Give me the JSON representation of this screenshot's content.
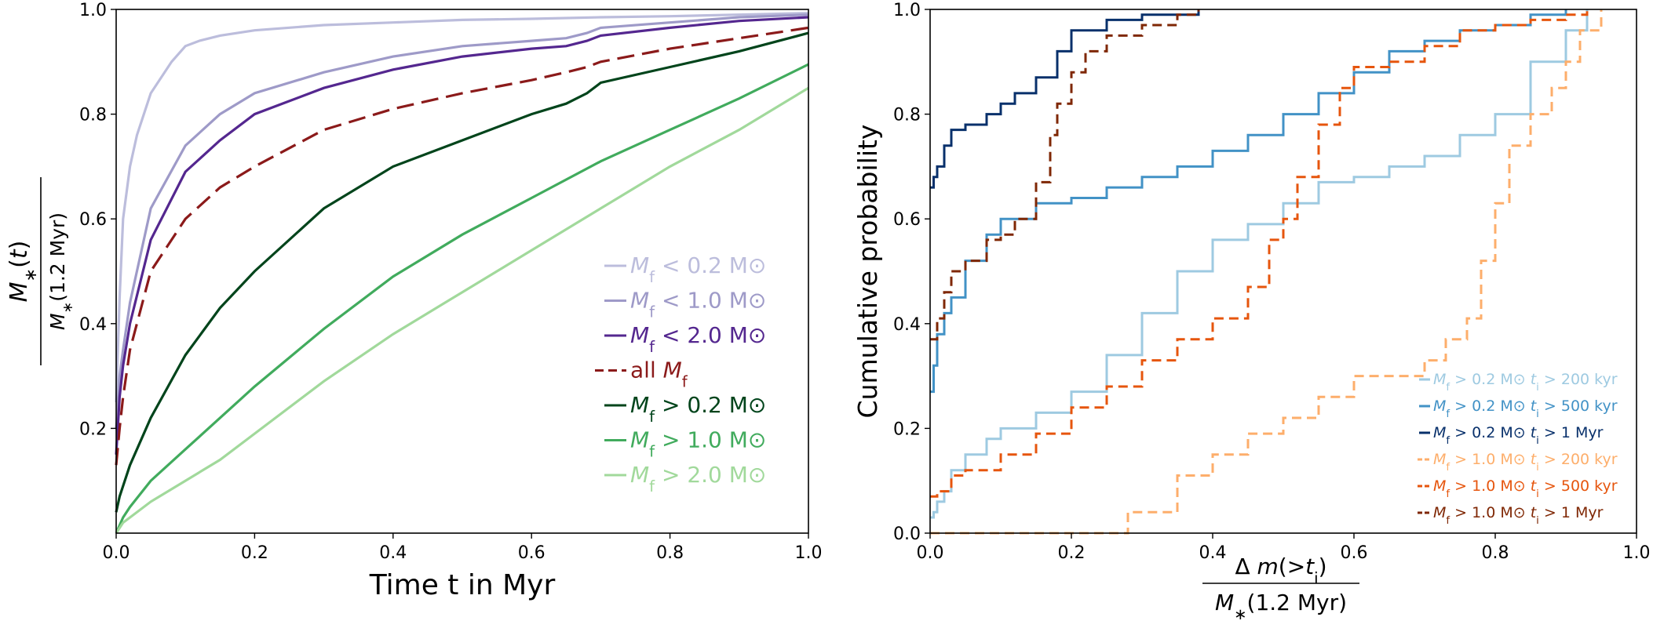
{
  "chart_data": [
    {
      "type": "line",
      "xlabel": "Time t in Myr",
      "ylabel_numerator": "M*(t)",
      "ylabel_denominator": "M*(1.2 Myr)",
      "xlim": [
        0.0,
        1.0
      ],
      "ylim": [
        0.0,
        1.0
      ],
      "xticks": [
        "0.0",
        "0.2",
        "0.4",
        "0.6",
        "0.8",
        "1.0"
      ],
      "yticks": [
        "0.2",
        "0.4",
        "0.6",
        "0.8",
        "1.0"
      ],
      "legend_position": "lower-right",
      "series": [
        {
          "name": "Mf < 0.2 M⊙",
          "color": "#bcbddc",
          "dash": "solid",
          "x": [
            0,
            0.005,
            0.01,
            0.02,
            0.03,
            0.05,
            0.08,
            0.1,
            0.12,
            0.15,
            0.2,
            0.3,
            0.4,
            0.5,
            0.6,
            0.7,
            0.8,
            0.9,
            1.0
          ],
          "y": [
            0.25,
            0.45,
            0.6,
            0.7,
            0.76,
            0.84,
            0.9,
            0.93,
            0.94,
            0.95,
            0.96,
            0.97,
            0.975,
            0.98,
            0.982,
            0.985,
            0.987,
            0.99,
            0.993
          ]
        },
        {
          "name": "Mf < 1.0 M⊙",
          "color": "#9e9ac8",
          "dash": "solid",
          "x": [
            0,
            0.005,
            0.01,
            0.02,
            0.05,
            0.1,
            0.15,
            0.2,
            0.3,
            0.4,
            0.5,
            0.6,
            0.65,
            0.68,
            0.7,
            0.8,
            0.9,
            1.0
          ],
          "y": [
            0.2,
            0.3,
            0.35,
            0.44,
            0.62,
            0.74,
            0.8,
            0.84,
            0.88,
            0.91,
            0.93,
            0.94,
            0.945,
            0.955,
            0.965,
            0.975,
            0.985,
            0.99
          ]
        },
        {
          "name": "Mf < 2.0 M⊙",
          "color": "#54278f",
          "dash": "solid",
          "x": [
            0,
            0.005,
            0.01,
            0.02,
            0.05,
            0.1,
            0.15,
            0.2,
            0.3,
            0.4,
            0.5,
            0.6,
            0.65,
            0.68,
            0.7,
            0.8,
            0.9,
            1.0
          ],
          "y": [
            0.15,
            0.26,
            0.32,
            0.4,
            0.56,
            0.69,
            0.75,
            0.8,
            0.85,
            0.885,
            0.91,
            0.925,
            0.93,
            0.94,
            0.95,
            0.965,
            0.978,
            0.985
          ]
        },
        {
          "name": "all Mf",
          "color": "#8b1a1a",
          "dash": "dashed",
          "x": [
            0,
            0.005,
            0.01,
            0.02,
            0.05,
            0.1,
            0.15,
            0.2,
            0.3,
            0.4,
            0.5,
            0.6,
            0.65,
            0.68,
            0.7,
            0.8,
            0.9,
            1.0
          ],
          "y": [
            0.13,
            0.2,
            0.26,
            0.35,
            0.5,
            0.6,
            0.66,
            0.7,
            0.77,
            0.81,
            0.84,
            0.865,
            0.88,
            0.89,
            0.9,
            0.925,
            0.945,
            0.965
          ]
        },
        {
          "name": "Mf > 0.2 M⊙",
          "color": "#00441b",
          "dash": "solid",
          "x": [
            0,
            0.005,
            0.01,
            0.02,
            0.05,
            0.1,
            0.15,
            0.2,
            0.3,
            0.4,
            0.5,
            0.6,
            0.65,
            0.68,
            0.7,
            0.8,
            0.9,
            1.0
          ],
          "y": [
            0.04,
            0.07,
            0.09,
            0.13,
            0.22,
            0.34,
            0.43,
            0.5,
            0.62,
            0.7,
            0.75,
            0.8,
            0.82,
            0.84,
            0.86,
            0.89,
            0.92,
            0.955
          ]
        },
        {
          "name": "Mf > 1.0 M⊙",
          "color": "#41ab5d",
          "dash": "solid",
          "x": [
            0,
            0.01,
            0.02,
            0.05,
            0.1,
            0.2,
            0.3,
            0.4,
            0.5,
            0.6,
            0.7,
            0.8,
            0.9,
            1.0
          ],
          "y": [
            0.0,
            0.03,
            0.05,
            0.1,
            0.16,
            0.28,
            0.39,
            0.49,
            0.57,
            0.64,
            0.71,
            0.77,
            0.83,
            0.895
          ]
        },
        {
          "name": "Mf > 2.0 M⊙",
          "color": "#a1d99b",
          "dash": "solid",
          "x": [
            0,
            0.01,
            0.02,
            0.05,
            0.1,
            0.15,
            0.2,
            0.3,
            0.4,
            0.5,
            0.6,
            0.7,
            0.8,
            0.9,
            1.0
          ],
          "y": [
            0.0,
            0.02,
            0.03,
            0.06,
            0.1,
            0.14,
            0.19,
            0.29,
            0.38,
            0.46,
            0.54,
            0.62,
            0.7,
            0.77,
            0.85
          ]
        }
      ]
    },
    {
      "type": "line",
      "xlabel_numerator": "Δ m(>ti)",
      "xlabel_denominator": "M*(1.2 Myr)",
      "ylabel": "Cumulative probability",
      "xlim": [
        0.0,
        1.0
      ],
      "ylim": [
        0.0,
        1.0
      ],
      "xticks": [
        "0.0",
        "0.2",
        "0.4",
        "0.6",
        "0.8",
        "1.0"
      ],
      "yticks": [
        "0.0",
        "0.2",
        "0.4",
        "0.6",
        "0.8",
        "1.0"
      ],
      "legend_position": "lower-right",
      "series": [
        {
          "name": "Mf > 0.2 M⊙ ti > 200 kyr",
          "color": "#9ecae1",
          "dash": "solid",
          "x": [
            0,
            0.005,
            0.01,
            0.02,
            0.03,
            0.05,
            0.08,
            0.1,
            0.15,
            0.2,
            0.25,
            0.3,
            0.35,
            0.4,
            0.45,
            0.5,
            0.55,
            0.6,
            0.65,
            0.7,
            0.75,
            0.8,
            0.85,
            0.9,
            0.93
          ],
          "y": [
            0.03,
            0.04,
            0.06,
            0.08,
            0.12,
            0.15,
            0.18,
            0.2,
            0.23,
            0.27,
            0.34,
            0.42,
            0.5,
            0.56,
            0.59,
            0.63,
            0.67,
            0.68,
            0.7,
            0.72,
            0.76,
            0.8,
            0.9,
            0.96,
            1.0
          ]
        },
        {
          "name": "Mf > 0.2 M⊙ ti > 500 kyr",
          "color": "#4292c6",
          "dash": "solid",
          "x": [
            0,
            0.005,
            0.01,
            0.02,
            0.03,
            0.05,
            0.08,
            0.1,
            0.15,
            0.2,
            0.25,
            0.3,
            0.35,
            0.4,
            0.45,
            0.5,
            0.55,
            0.6,
            0.65,
            0.7,
            0.75,
            0.8,
            0.85,
            0.9
          ],
          "y": [
            0.27,
            0.32,
            0.38,
            0.42,
            0.45,
            0.52,
            0.57,
            0.6,
            0.63,
            0.64,
            0.66,
            0.68,
            0.7,
            0.73,
            0.76,
            0.8,
            0.84,
            0.88,
            0.92,
            0.94,
            0.96,
            0.97,
            0.99,
            1.0
          ]
        },
        {
          "name": "Mf > 0.2 M⊙ ti > 1 Myr",
          "color": "#08306b",
          "dash": "solid",
          "x": [
            0,
            0.005,
            0.01,
            0.02,
            0.03,
            0.05,
            0.08,
            0.1,
            0.12,
            0.15,
            0.18,
            0.2,
            0.25,
            0.3,
            0.35,
            0.38
          ],
          "y": [
            0.66,
            0.68,
            0.7,
            0.74,
            0.77,
            0.78,
            0.8,
            0.82,
            0.84,
            0.87,
            0.92,
            0.96,
            0.98,
            0.99,
            0.99,
            1.0
          ]
        },
        {
          "name": "Mf > 1.0 M⊙ ti > 200 kyr",
          "color": "#fdae6b",
          "dash": "dashed",
          "x": [
            0,
            0.26,
            0.28,
            0.35,
            0.4,
            0.45,
            0.5,
            0.55,
            0.6,
            0.65,
            0.7,
            0.73,
            0.76,
            0.78,
            0.8,
            0.82,
            0.85,
            0.88,
            0.9,
            0.92,
            0.95
          ],
          "y": [
            0.0,
            0.0,
            0.04,
            0.11,
            0.15,
            0.19,
            0.22,
            0.26,
            0.3,
            0.3,
            0.33,
            0.37,
            0.41,
            0.52,
            0.63,
            0.74,
            0.8,
            0.85,
            0.9,
            0.96,
            1.0
          ]
        },
        {
          "name": "Mf > 1.0 M⊙ ti > 500 kyr",
          "color": "#e6550d",
          "dash": "dashed",
          "x": [
            0,
            0.01,
            0.03,
            0.05,
            0.1,
            0.15,
            0.2,
            0.25,
            0.3,
            0.35,
            0.4,
            0.45,
            0.48,
            0.5,
            0.52,
            0.55,
            0.58,
            0.6,
            0.65,
            0.7,
            0.75,
            0.8,
            0.85,
            0.9,
            0.93
          ],
          "y": [
            0.07,
            0.08,
            0.11,
            0.12,
            0.15,
            0.19,
            0.24,
            0.28,
            0.33,
            0.37,
            0.41,
            0.47,
            0.56,
            0.6,
            0.68,
            0.78,
            0.85,
            0.89,
            0.9,
            0.93,
            0.96,
            0.97,
            0.98,
            0.99,
            1.0
          ]
        },
        {
          "name": "Mf > 1.0 M⊙ ti > 1 Myr",
          "color": "#7f2704",
          "dash": "dashed",
          "x": [
            0,
            0.01,
            0.02,
            0.03,
            0.05,
            0.08,
            0.1,
            0.12,
            0.15,
            0.17,
            0.18,
            0.2,
            0.22,
            0.25,
            0.3,
            0.35,
            0.38
          ],
          "y": [
            0.37,
            0.41,
            0.46,
            0.5,
            0.52,
            0.56,
            0.57,
            0.6,
            0.67,
            0.76,
            0.82,
            0.88,
            0.92,
            0.95,
            0.97,
            0.99,
            1.0
          ]
        }
      ]
    }
  ]
}
